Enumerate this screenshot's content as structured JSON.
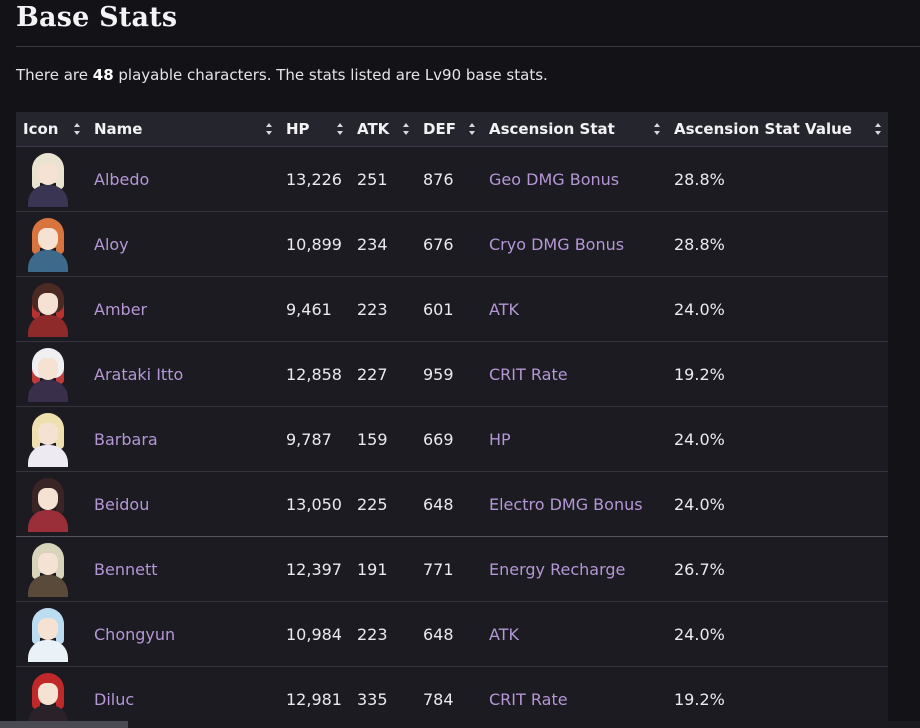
{
  "section": {
    "title": "Base Stats"
  },
  "intro": {
    "prefix": "There are ",
    "count": "48",
    "suffix": " playable characters. The stats listed are Lv90 base stats."
  },
  "table": {
    "headers": {
      "icon": "Icon",
      "name": "Name",
      "hp": "HP",
      "atk": "ATK",
      "def": "DEF",
      "ascension_stat": "Ascension Stat",
      "ascension_value": "Ascension Stat Value"
    },
    "rows": [
      {
        "name": "Albedo",
        "hp": "13,226",
        "atk": "251",
        "def": "876",
        "stat": "Geo DMG Bonus",
        "value": "28.8%",
        "colors": {
          "hair": "#e9e3cf",
          "body": "#3b3554",
          "side": "#e9e3cf"
        }
      },
      {
        "name": "Aloy",
        "hp": "10,899",
        "atk": "234",
        "def": "676",
        "stat": "Cryo DMG Bonus",
        "value": "28.8%",
        "colors": {
          "hair": "#d9743e",
          "body": "#3d6a8a",
          "side": "#d9743e"
        }
      },
      {
        "name": "Amber",
        "hp": "9,461",
        "atk": "223",
        "def": "601",
        "stat": "ATK",
        "value": "24.0%",
        "colors": {
          "hair": "#4a2a22",
          "body": "#8e2a2a",
          "side": "#b83030"
        }
      },
      {
        "name": "Arataki Itto",
        "hp": "12,858",
        "atk": "227",
        "def": "959",
        "stat": "CRIT Rate",
        "value": "19.2%",
        "colors": {
          "hair": "#f0f0f2",
          "body": "#3a2f4a",
          "side": "#c23b3b"
        }
      },
      {
        "name": "Barbara",
        "hp": "9,787",
        "atk": "159",
        "def": "669",
        "stat": "HP",
        "value": "24.0%",
        "colors": {
          "hair": "#efe0b0",
          "body": "#eeeaf2",
          "side": "#efe0b0"
        }
      },
      {
        "name": "Beidou",
        "hp": "13,050",
        "atk": "225",
        "def": "648",
        "stat": "Electro DMG Bonus",
        "value": "24.0%",
        "colors": {
          "hair": "#3a2426",
          "body": "#9a2f3a",
          "side": "#3a2426"
        }
      },
      {
        "name": "Bennett",
        "hp": "12,397",
        "atk": "191",
        "def": "771",
        "stat": "Energy Recharge",
        "value": "26.7%",
        "colors": {
          "hair": "#d8d4bc",
          "body": "#5a4a3a",
          "side": "#d8d4bc"
        }
      },
      {
        "name": "Chongyun",
        "hp": "10,984",
        "atk": "223",
        "def": "648",
        "stat": "ATK",
        "value": "24.0%",
        "colors": {
          "hair": "#bcdcf0",
          "body": "#eaf2f8",
          "side": "#bcdcf0"
        }
      },
      {
        "name": "Diluc",
        "hp": "12,981",
        "atk": "335",
        "def": "784",
        "stat": "CRIT Rate",
        "value": "19.2%",
        "colors": {
          "hair": "#c0282a",
          "body": "#2a2228",
          "side": "#c0282a"
        }
      }
    ]
  }
}
